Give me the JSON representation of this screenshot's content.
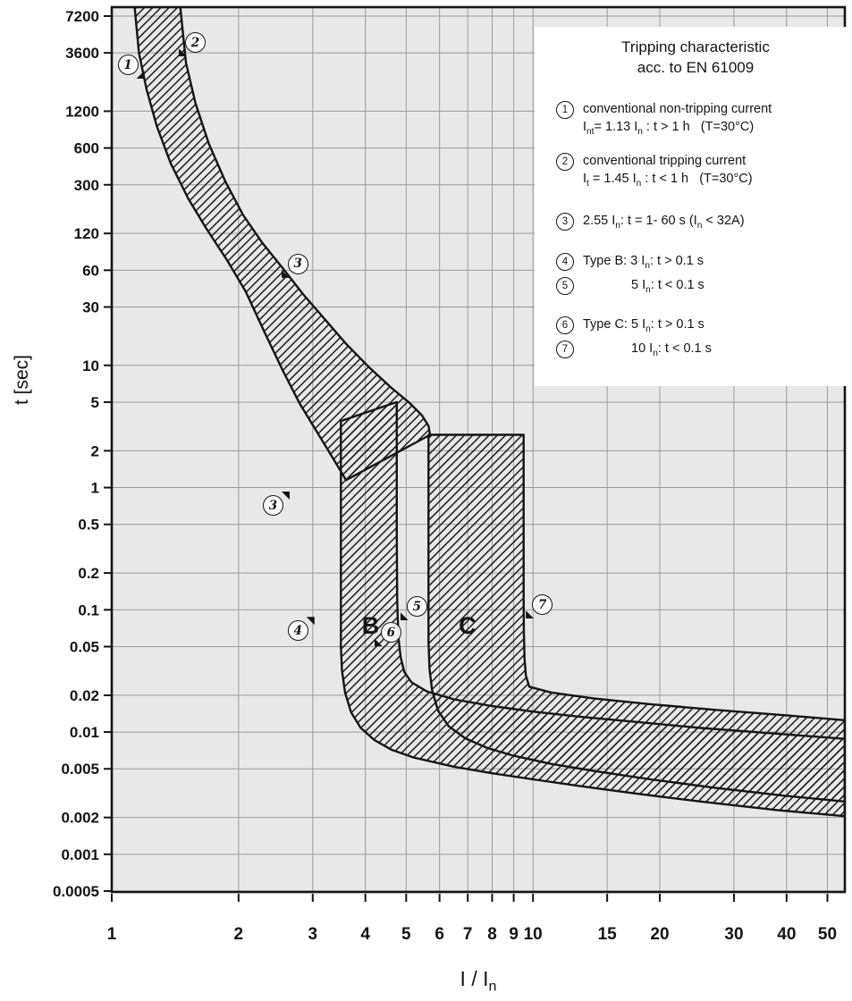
{
  "axes": {
    "y_title": "t [sec]",
    "x_title": "I / I_{n}"
  },
  "legend": {
    "title_line1": "Tripping characteristic",
    "title_line2": "acc. to EN 61009",
    "items": [
      {
        "num": "1",
        "line1": "conventional non-tripping current",
        "line2": "I_{nt}= 1.13 I_{n} : t > 1 h   (T=30°C)"
      },
      {
        "num": "2",
        "line1": "conventional tripping current",
        "line2": "I_{t} = 1.45 I_{n} : t < 1 h   (T=30°C)"
      },
      {
        "num": "3",
        "line1": "2.55 I_{n}: t = 1- 60 s (I_{n} < 32A)"
      },
      {
        "num": "4",
        "line1": "Type B: 3 I_{n}: t > 0.1 s"
      },
      {
        "num": "5",
        "line1": "5 I_{n}: t < 0.1 s",
        "indent": true
      },
      {
        "num": "6",
        "line1": "Type C: 5 I_{n}: t > 0.1 s"
      },
      {
        "num": "7",
        "line1": "10 I_{n}: t < 0.1 s",
        "indent": true
      }
    ]
  },
  "chart_data": {
    "type": "area",
    "title": "Tripping characteristic acc. to EN 61009",
    "xlabel": "I / In",
    "ylabel": "t [sec]",
    "x_axis": {
      "scale": "log",
      "min": 1,
      "max": 55,
      "ticks": [
        "1",
        "2",
        "3",
        "4",
        "5",
        "6",
        "7",
        "8",
        "9",
        "10",
        "15",
        "20",
        "30",
        "40",
        "50"
      ]
    },
    "y_axis": {
      "scale": "log",
      "min": 0.0005,
      "max": 7200,
      "ticks": [
        "7200",
        "3600",
        "1200",
        "600",
        "300",
        "120",
        "60",
        "30",
        "10",
        "5",
        "2",
        "1",
        "0.5",
        "0.2",
        "0.1",
        "0.05",
        "0.02",
        "0.01",
        "0.005",
        "0.002",
        "0.001",
        "0.0005"
      ]
    },
    "grid": true,
    "bands": [
      {
        "name": "thermal-tripping-band",
        "description": "thermal trip zone between conventional non-tripping (1.13 In) and tripping (1.45 In) current curves",
        "upper": [
          [
            1.45,
            9500
          ],
          [
            1.5,
            3000
          ],
          [
            1.58,
            1400
          ],
          [
            1.7,
            650
          ],
          [
            1.86,
            320
          ],
          [
            2.05,
            170
          ],
          [
            2.28,
            100
          ],
          [
            2.55,
            62
          ],
          [
            2.85,
            38
          ],
          [
            3.2,
            24
          ],
          [
            3.6,
            15
          ],
          [
            4.1,
            9.5
          ],
          [
            4.6,
            6.6
          ],
          [
            5.1,
            4.9
          ],
          [
            5.45,
            3.9
          ],
          [
            5.65,
            3.2
          ],
          [
            5.7,
            2.7
          ]
        ],
        "lower": [
          [
            1.13,
            9500
          ],
          [
            1.16,
            3600
          ],
          [
            1.21,
            1800
          ],
          [
            1.28,
            900
          ],
          [
            1.38,
            450
          ],
          [
            1.52,
            230
          ],
          [
            1.68,
            130
          ],
          [
            1.88,
            72
          ],
          [
            2.08,
            40
          ],
          [
            2.3,
            19
          ],
          [
            2.55,
            9
          ],
          [
            2.8,
            4.8
          ],
          [
            3.1,
            2.7
          ],
          [
            3.4,
            1.6
          ],
          [
            3.6,
            1.15
          ]
        ]
      },
      {
        "name": "type-B-magnetic-band",
        "description": "Type B instantaneous trip zone 3-5 In",
        "outline": [
          [
            3.5,
            3.5
          ],
          [
            3.5,
            0.05
          ],
          [
            3.52,
            0.032
          ],
          [
            3.58,
            0.021
          ],
          [
            3.7,
            0.0145
          ],
          [
            3.9,
            0.0108
          ],
          [
            4.2,
            0.0086
          ],
          [
            4.6,
            0.0072
          ],
          [
            5.2,
            0.0062
          ],
          [
            6.5,
            0.0052
          ],
          [
            8,
            0.0046
          ],
          [
            10,
            0.0041
          ],
          [
            13,
            0.0036
          ],
          [
            18,
            0.0031
          ],
          [
            25,
            0.0027
          ],
          [
            38,
            0.0023
          ],
          [
            55,
            0.00205
          ],
          [
            55,
            0.0088
          ],
          [
            38,
            0.0097
          ],
          [
            25,
            0.0108
          ],
          [
            18,
            0.012
          ],
          [
            13,
            0.0133
          ],
          [
            10,
            0.0147
          ],
          [
            8,
            0.0163
          ],
          [
            6.5,
            0.0185
          ],
          [
            5.6,
            0.0215
          ],
          [
            5.15,
            0.0255
          ],
          [
            4.95,
            0.031
          ],
          [
            4.85,
            0.041
          ],
          [
            4.79,
            0.06
          ],
          [
            4.76,
            0.12
          ],
          [
            4.75,
            0.4
          ],
          [
            4.75,
            5.0
          ]
        ]
      },
      {
        "name": "type-C-magnetic-band",
        "description": "Type C instantaneous trip zone 5-10 In",
        "outline": [
          [
            5.65,
            2.7
          ],
          [
            5.65,
            0.055
          ],
          [
            5.68,
            0.033
          ],
          [
            5.76,
            0.022
          ],
          [
            5.95,
            0.015
          ],
          [
            6.3,
            0.0112
          ],
          [
            6.9,
            0.0089
          ],
          [
            7.8,
            0.0074
          ],
          [
            9.0,
            0.0064
          ],
          [
            11,
            0.0055
          ],
          [
            14,
            0.0048
          ],
          [
            19,
            0.0041
          ],
          [
            27,
            0.0035
          ],
          [
            40,
            0.003
          ],
          [
            55,
            0.0027
          ],
          [
            55,
            0.0125
          ],
          [
            40,
            0.0137
          ],
          [
            27,
            0.0152
          ],
          [
            19,
            0.0169
          ],
          [
            14,
            0.0188
          ],
          [
            11,
            0.0211
          ],
          [
            9.8,
            0.0235
          ],
          [
            9.62,
            0.029
          ],
          [
            9.55,
            0.04
          ],
          [
            9.51,
            0.07
          ],
          [
            9.5,
            0.15
          ],
          [
            9.5,
            0.6
          ],
          [
            9.5,
            2.7
          ]
        ]
      }
    ],
    "annotations": {
      "markers": [
        {
          "label": "1",
          "x": 1.09,
          "t": 2900,
          "arrow": "se"
        },
        {
          "label": "2",
          "x": 1.575,
          "t": 4400,
          "arrow": "sw"
        },
        {
          "label": "3",
          "x": 2.76,
          "t": 68,
          "arrow": "sw"
        },
        {
          "label": "3",
          "x": 2.41,
          "t": 0.72,
          "arrow": "ne"
        },
        {
          "label": "4",
          "x": 2.76,
          "t": 0.068,
          "arrow": "ne"
        },
        {
          "label": "5",
          "x": 5.29,
          "t": 0.107,
          "arrow": "sw"
        },
        {
          "label": "6",
          "x": 4.59,
          "t": 0.0655,
          "arrow": "sw"
        },
        {
          "label": "7",
          "x": 10.5,
          "t": 0.111,
          "arrow": "sw"
        }
      ],
      "letters": [
        {
          "text": "B",
          "x": 4.12,
          "t": 0.072
        },
        {
          "text": "C",
          "x": 7.0,
          "t": 0.072
        }
      ]
    }
  }
}
